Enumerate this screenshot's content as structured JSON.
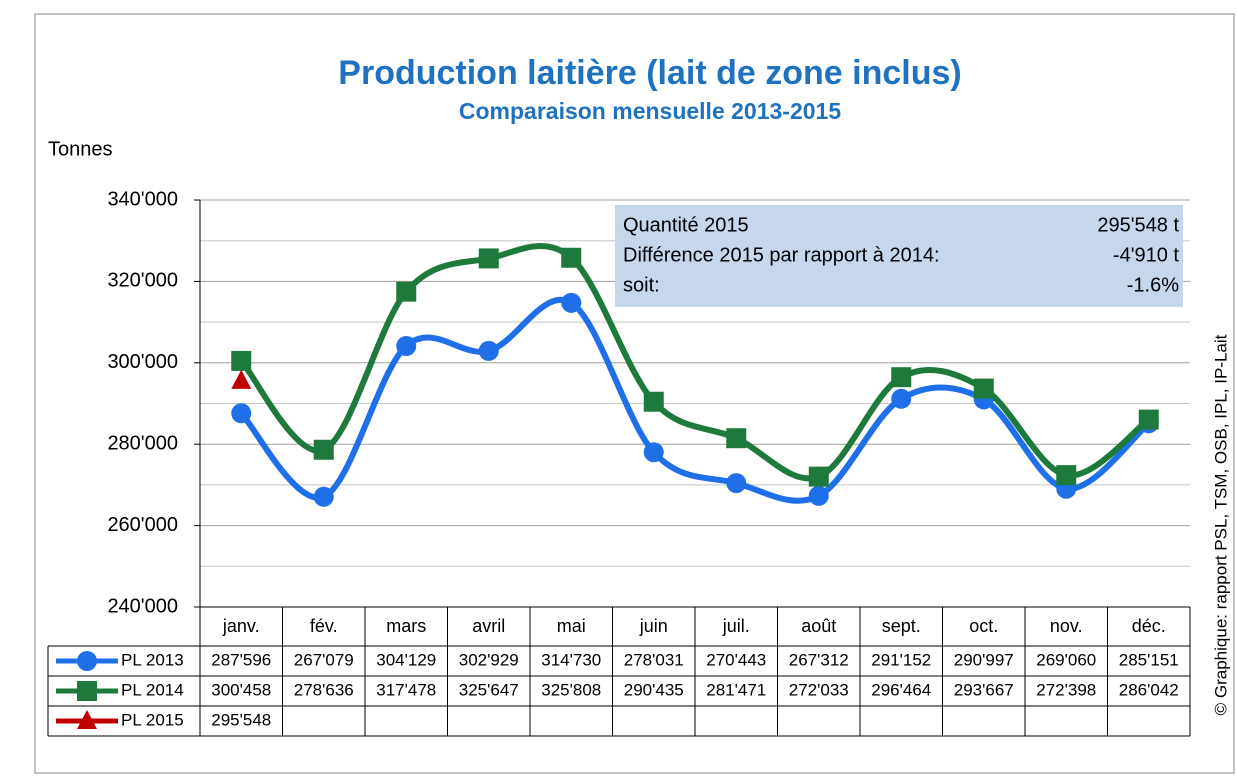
{
  "chart_data": {
    "type": "line",
    "title": "Production laitière (lait de zone inclus)",
    "subtitle": "Comparaison mensuelle 2013-2015",
    "y_label": "Tonnes",
    "credit": "© Graphique: rapport PSL, TSM, OSB, IPL, IP-Lait",
    "categories": [
      "janv.",
      "fév.",
      "mars",
      "avril",
      "mai",
      "juin",
      "juil.",
      "août",
      "sept.",
      "oct.",
      "nov.",
      "déc."
    ],
    "series": [
      {
        "name": "PL 2013",
        "color": "#1f6fe8",
        "marker": "circle",
        "values": [
          287596,
          267079,
          304129,
          302929,
          314730,
          278031,
          270443,
          267312,
          291152,
          290997,
          269060,
          285151
        ],
        "value_labels": [
          "287'596",
          "267'079",
          "304'129",
          "302'929",
          "314'730",
          "278'031",
          "270'443",
          "267'312",
          "291'152",
          "290'997",
          "269'060",
          "285'151"
        ]
      },
      {
        "name": "PL 2014",
        "color": "#1e7a3c",
        "marker": "square",
        "values": [
          300458,
          278636,
          317478,
          325647,
          325808,
          290435,
          281471,
          272033,
          296464,
          293667,
          272398,
          286042
        ],
        "value_labels": [
          "300'458",
          "278'636",
          "317'478",
          "325'647",
          "325'808",
          "290'435",
          "281'471",
          "272'033",
          "296'464",
          "293'667",
          "272'398",
          "286'042"
        ]
      },
      {
        "name": "PL 2015",
        "color": "#c00000",
        "marker": "triangle",
        "values": [
          295548,
          null,
          null,
          null,
          null,
          null,
          null,
          null,
          null,
          null,
          null,
          null
        ],
        "value_labels": [
          "295'548",
          null,
          null,
          null,
          null,
          null,
          null,
          null,
          null,
          null,
          null,
          null
        ]
      }
    ],
    "ylim": [
      240000,
      340000
    ],
    "yticks": [
      {
        "value": 240000,
        "label": "240'000"
      },
      {
        "value": 260000,
        "label": "260'000"
      },
      {
        "value": 280000,
        "label": "280'000"
      },
      {
        "value": 300000,
        "label": "300'000"
      },
      {
        "value": 320000,
        "label": "320'000"
      },
      {
        "value": 340000,
        "label": "340'000"
      }
    ],
    "minor_yticks": [
      250000,
      270000,
      290000,
      310000,
      330000
    ],
    "grid": true,
    "annotation": [
      {
        "label": "Quantité 2015",
        "text": "295'548 t"
      },
      {
        "label": "Différence 2015 par rapport à 2014:",
        "text": "-4'910 t"
      },
      {
        "label": "soit:",
        "text": "-1.6%"
      }
    ]
  }
}
